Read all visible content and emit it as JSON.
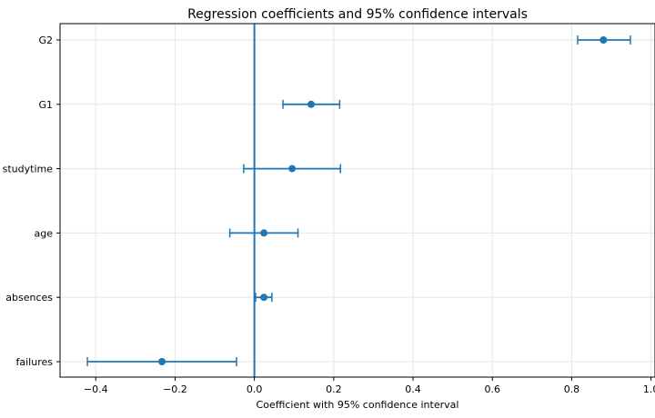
{
  "chart_data": {
    "type": "scatter",
    "subtype": "forest-plot",
    "title": "Regression coefficients and 95% confidence intervals",
    "xlabel": "Coefficient with 95% confidence interval",
    "ylabel": "",
    "xlim": [
      -0.49,
      1.01
    ],
    "xticks": [
      -0.4,
      -0.2,
      0.0,
      0.2,
      0.4,
      0.6,
      0.8,
      1.0
    ],
    "xtick_labels": [
      "−0.4",
      "−0.2",
      "0.0",
      "0.2",
      "0.4",
      "0.6",
      "0.8",
      "1.0"
    ],
    "grid": true,
    "reference_line_x": 0,
    "color": "#1f77b4",
    "series": [
      {
        "categories": [
          "G2",
          "G1",
          "studytime",
          "age",
          "absences",
          "failures"
        ],
        "estimate": [
          0.88,
          0.143,
          0.095,
          0.024,
          0.024,
          -0.233
        ],
        "ci_low": [
          0.815,
          0.072,
          -0.027,
          -0.062,
          0.003,
          -0.421
        ],
        "ci_high": [
          0.948,
          0.215,
          0.217,
          0.11,
          0.044,
          -0.045
        ]
      }
    ]
  }
}
